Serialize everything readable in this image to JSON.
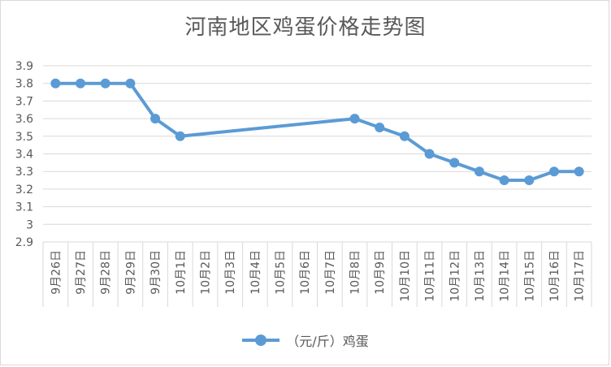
{
  "chart_data": {
    "type": "line",
    "title": "河南地区鸡蛋价格走势图",
    "categories": [
      "9月26日",
      "9月27日",
      "9月28日",
      "9月29日",
      "9月30日",
      "10月1日",
      "10月2日",
      "10月3日",
      "10月4日",
      "10月5日",
      "10月6日",
      "10月7日",
      "10月8日",
      "10月9日",
      "10月10日",
      "10月11日",
      "10月12日",
      "10月13日",
      "10月14日",
      "10月15日",
      "10月16日",
      "10月17日"
    ],
    "series": [
      {
        "name": "（元/斤）鸡蛋",
        "values": [
          3.8,
          3.8,
          3.8,
          3.8,
          3.6,
          3.5,
          null,
          null,
          null,
          null,
          null,
          null,
          3.6,
          3.55,
          3.5,
          3.4,
          3.35,
          3.3,
          3.25,
          3.25,
          3.3,
          3.3
        ]
      }
    ],
    "yticks": [
      "2.9",
      "3",
      "3.1",
      "3.2",
      "3.3",
      "3.4",
      "3.5",
      "3.6",
      "3.7",
      "3.8",
      "3.9"
    ],
    "ylim": [
      2.9,
      3.9
    ],
    "grid": true,
    "legend_position": "bottom",
    "series_color": "#5b9bd5"
  }
}
